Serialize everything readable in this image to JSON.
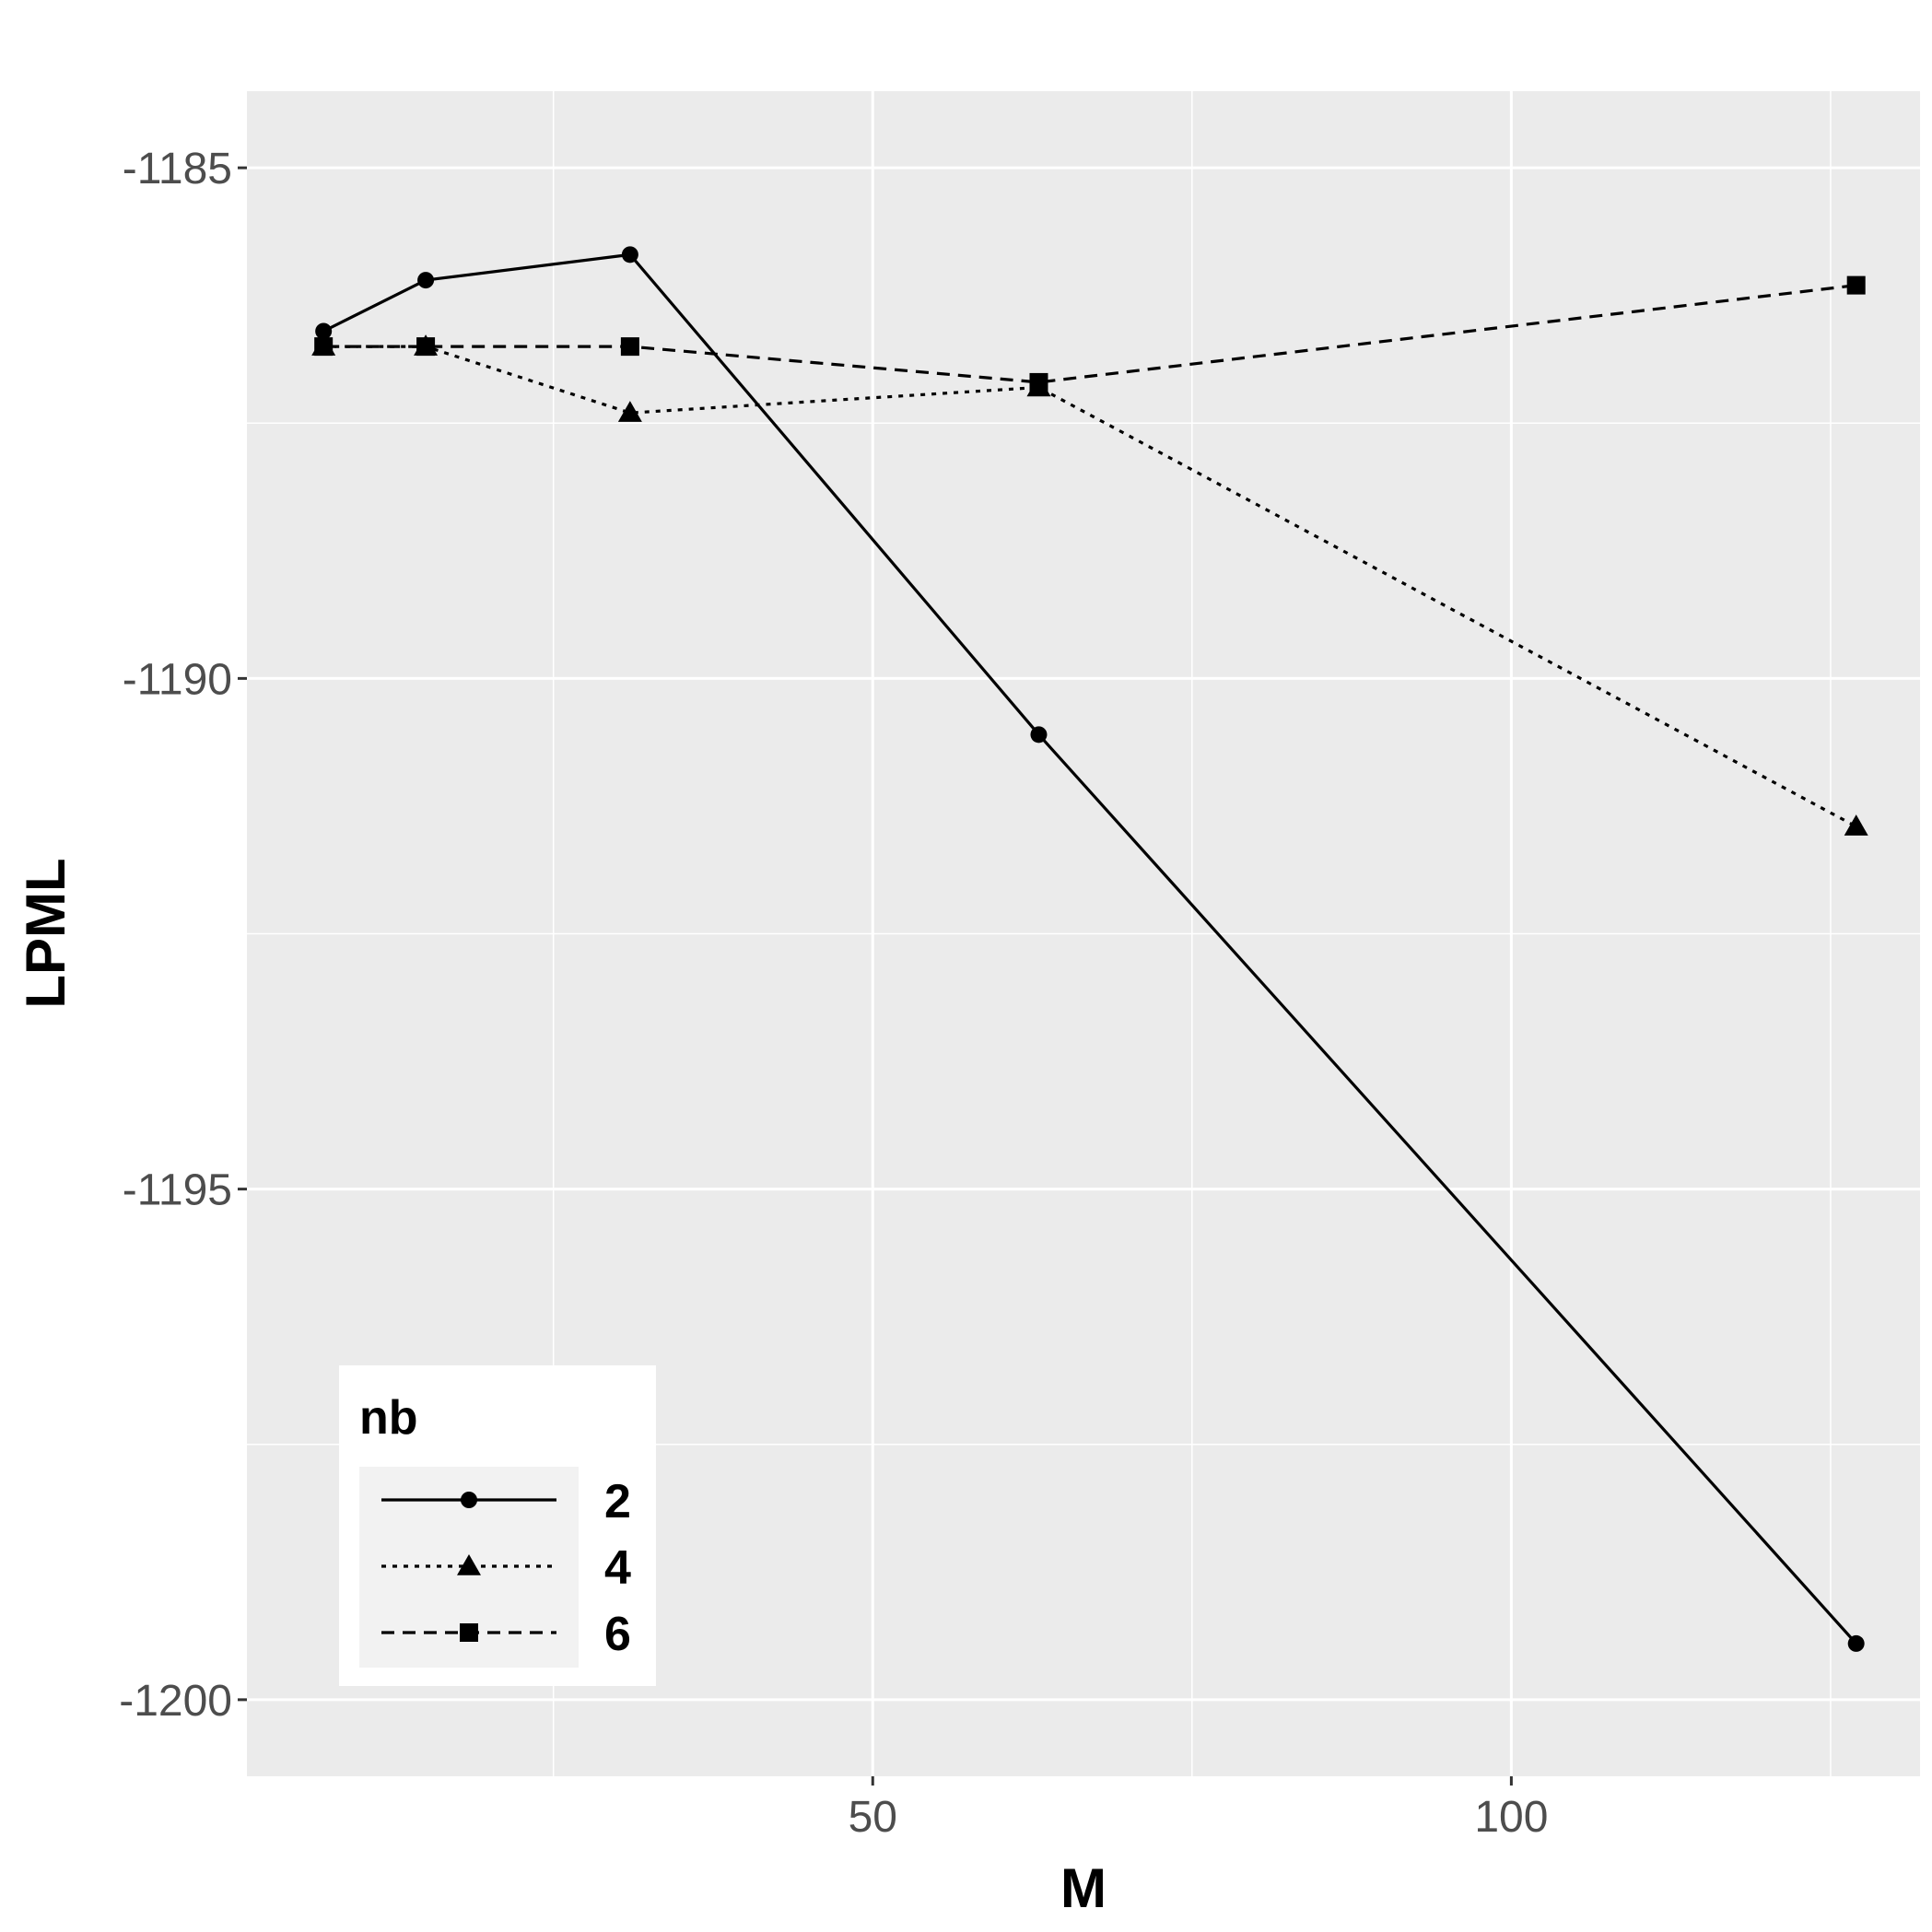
{
  "chart_data": {
    "type": "line",
    "title": "",
    "xlabel": "M",
    "ylabel": "LPML",
    "xlim": [
      1,
      132
    ],
    "ylim": [
      -1200.75,
      -1184.25
    ],
    "x_ticks": [
      50,
      100
    ],
    "y_ticks": [
      -1185,
      -1190,
      -1195,
      -1200
    ],
    "grid": true,
    "legend": {
      "title": "nb",
      "placement": "bottom-left"
    },
    "series": [
      {
        "name": "2",
        "line_style": "solid",
        "marker": "circle",
        "x": [
          7,
          15,
          31,
          63,
          127
        ],
        "y": [
          -1186.6,
          -1186.1,
          -1185.85,
          -1190.55,
          -1199.45
        ]
      },
      {
        "name": "4",
        "line_style": "dotted",
        "marker": "triangle",
        "x": [
          7,
          15,
          31,
          63,
          127
        ],
        "y": [
          -1186.75,
          -1186.75,
          -1187.4,
          -1187.15,
          -1191.45
        ]
      },
      {
        "name": "6",
        "line_style": "dashed",
        "marker": "square",
        "x": [
          7,
          15,
          31,
          63,
          127
        ],
        "y": [
          -1186.75,
          -1186.75,
          -1186.75,
          -1187.1,
          -1186.15
        ]
      }
    ]
  }
}
